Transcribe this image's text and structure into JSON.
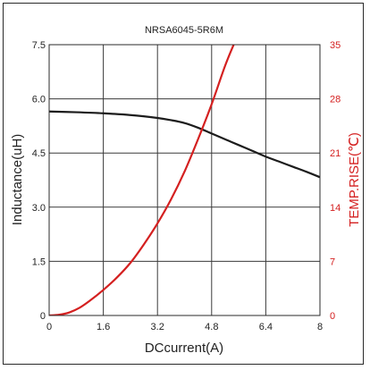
{
  "chart_data": {
    "type": "line",
    "title": "NRSA6045-5R6M",
    "xlabel": "DCcurrent(A)",
    "ylabel_left": "Inductance(uH)",
    "ylabel_right": "TEMP.RISE(℃)",
    "xlim": [
      0,
      8
    ],
    "ylim_left": [
      0,
      7.5
    ],
    "ylim_right": [
      0,
      35
    ],
    "x_ticks": [
      "0",
      "1.6",
      "3.2",
      "4.8",
      "6.4",
      "8"
    ],
    "y_left_ticks": [
      "0",
      "1.5",
      "3.0",
      "4.5",
      "6.0",
      "7.5"
    ],
    "y_right_ticks": [
      "0",
      "7",
      "14",
      "21",
      "28",
      "35"
    ],
    "grid": true,
    "colors": {
      "inductance": "#1c1c1c",
      "temp_rise": "#d42020",
      "right_axis": "#d42020",
      "grid": "#3a3a3a"
    },
    "series": [
      {
        "axis": "left",
        "x": [
          0,
          0.8,
          1.6,
          2.4,
          3.2,
          3.6,
          4.0,
          4.4,
          4.8,
          5.2,
          5.6,
          6.0,
          6.4,
          6.8,
          7.2,
          7.6,
          8.0
        ],
        "values": [
          5.65,
          5.63,
          5.6,
          5.55,
          5.47,
          5.41,
          5.33,
          5.2,
          5.04,
          4.88,
          4.72,
          4.56,
          4.4,
          4.26,
          4.12,
          3.98,
          3.83
        ]
      },
      {
        "axis": "right",
        "x": [
          0,
          0.3,
          0.6,
          0.9,
          1.2,
          1.6,
          2.0,
          2.4,
          2.8,
          3.2,
          3.6,
          4.0,
          4.4,
          4.8,
          5.2,
          5.5
        ],
        "values": [
          0,
          0.1,
          0.4,
          1.0,
          1.9,
          3.3,
          4.9,
          6.8,
          9.2,
          11.9,
          15.0,
          18.6,
          22.8,
          27.3,
          32.3,
          35.5
        ]
      }
    ]
  }
}
